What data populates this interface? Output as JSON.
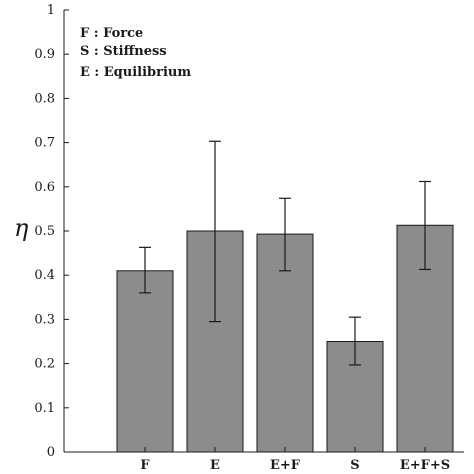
{
  "chart_data": {
    "type": "bar",
    "categories": [
      "F",
      "E",
      "E+F",
      "S",
      "E+F+S"
    ],
    "values": [
      0.41,
      0.5,
      0.493,
      0.25,
      0.513
    ],
    "errors": [
      [
        0.36,
        0.463
      ],
      [
        0.295,
        0.703
      ],
      [
        0.41,
        0.574
      ],
      [
        0.197,
        0.305
      ],
      [
        0.413,
        0.612
      ]
    ],
    "ylabel": "η",
    "ylim": [
      0,
      1
    ],
    "yticks": [
      "0",
      "0.1",
      "0.2",
      "0.3",
      "0.4",
      "0.5",
      "0.6",
      "0.7",
      "0.8",
      "0.9",
      "1"
    ],
    "legend": {
      "placement": "top-left",
      "entries": [
        "F : Force",
        "S : Stiffness",
        "E : Equilibrium"
      ]
    },
    "grid": false,
    "bar_color": "#8c8c8c"
  }
}
